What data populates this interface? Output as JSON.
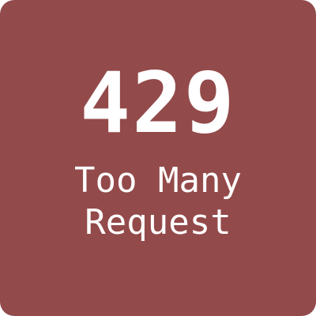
{
  "tile": {
    "background_color": "#934a4a",
    "text_color": "#ffffff"
  },
  "status": {
    "code": "429",
    "message_line1": "Too Many",
    "message_line2": "Request"
  }
}
